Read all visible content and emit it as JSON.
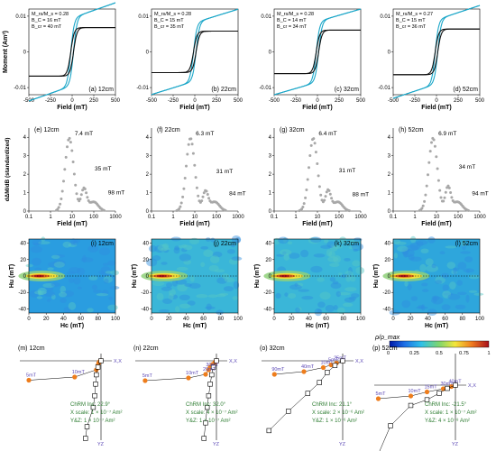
{
  "colors": {
    "cyan": "#1aa6c8",
    "black": "#111111",
    "gray": "#a8a8a8",
    "orange": "#ee7d1c",
    "purple": "#5a47b5",
    "green": "#2e7d32"
  },
  "chart_data": [
    {
      "type": "line",
      "panel": "a",
      "label": "(a) 12cm",
      "ratio": "M_rs/M_s = 0.28",
      "bc": "B_C   = 16 mT",
      "bcr": "B_cr  = 40 mT",
      "xlabel": "Field (mT)",
      "ylabel": "Moment (Am²)",
      "xlim": [
        -500,
        500
      ],
      "ylim": [
        -0.012,
        0.012
      ],
      "xticks": [
        "-500",
        "-250",
        "0",
        "250",
        "500"
      ],
      "yticks": [
        "0.01",
        "0",
        "-0.01"
      ],
      "series": [
        {
          "name": "cyan",
          "color": "#1aa6c8",
          "ms": 0.0095,
          "slope": 8.5e-06,
          "bc": 16
        },
        {
          "name": "black",
          "color": "#111111",
          "ms": 0.0068,
          "slope": 0,
          "bc": 16
        }
      ]
    },
    {
      "type": "line",
      "panel": "b",
      "label": "(b) 22cm",
      "ratio": "M_rs/M_s = 0.28",
      "bc": "B_C   = 15 mT",
      "bcr": "B_cr  = 35 mT",
      "xlabel": "Field (mT)",
      "ylabel": "",
      "xlim": [
        -500,
        500
      ],
      "ylim": [
        -0.012,
        0.012
      ],
      "xticks": [
        "-500",
        "-250",
        "0",
        "250",
        "500"
      ],
      "yticks": [
        "0.01",
        "0",
        "-0.01"
      ],
      "series": [
        {
          "name": "cyan",
          "color": "#1aa6c8",
          "ms": 0.0082,
          "slope": 7.5e-06,
          "bc": 15
        },
        {
          "name": "black",
          "color": "#111111",
          "ms": 0.0058,
          "slope": 0,
          "bc": 15
        }
      ]
    },
    {
      "type": "line",
      "panel": "c",
      "label": "(c) 32cm",
      "ratio": "M_rs/M_s = 0.28",
      "bc": "B_C   = 14 mT",
      "bcr": "B_cr  = 34 mT",
      "xlabel": "Field (mT)",
      "ylabel": "",
      "xlim": [
        -500,
        500
      ],
      "ylim": [
        -0.012,
        0.012
      ],
      "xticks": [
        "-500",
        "-250",
        "0",
        "250",
        "500"
      ],
      "yticks": [
        "0.01",
        "0",
        "-0.01"
      ],
      "series": [
        {
          "name": "cyan",
          "color": "#1aa6c8",
          "ms": 0.0085,
          "slope": 7e-06,
          "bc": 14
        },
        {
          "name": "black",
          "color": "#111111",
          "ms": 0.0061,
          "slope": 0,
          "bc": 14
        }
      ]
    },
    {
      "type": "line",
      "panel": "d",
      "label": "(d) 52cm",
      "ratio": "M_rs/M_s = 0.27",
      "bc": "B_C   = 15 mT",
      "bcr": "B_cr  = 36 mT",
      "xlabel": "Field (mT)",
      "ylabel": "",
      "xlim": [
        -500,
        500
      ],
      "ylim": [
        -0.012,
        0.012
      ],
      "xticks": [
        "-500",
        "-250",
        "0",
        "250",
        "500"
      ],
      "yticks": [
        "0.01",
        "0",
        "-0.01"
      ],
      "series": [
        {
          "name": "cyan",
          "color": "#1aa6c8",
          "ms": 0.009,
          "slope": 8e-06,
          "bc": 15
        },
        {
          "name": "black",
          "color": "#111111",
          "ms": 0.0064,
          "slope": 0,
          "bc": 15
        }
      ]
    },
    {
      "type": "scatter",
      "panel": "e",
      "label": "(e) 12cm",
      "xlabel": "Field (mT)",
      "ylabel": "dΔM/dB (standardized)",
      "xscale": "log",
      "xlim": [
        0.1,
        1000
      ],
      "ylim": [
        0,
        4.5
      ],
      "xticks": [
        "0.1",
        "1",
        "10",
        "100",
        "1000"
      ],
      "yticks": [
        "4",
        "3",
        "2",
        "1",
        "0"
      ],
      "peaks": [
        {
          "text": "7.4 mT",
          "x": 7.4,
          "y": 3.95
        },
        {
          "text": "35 mT",
          "x": 35,
          "y": 2.1
        },
        {
          "text": "98 mT",
          "x": 98,
          "y": 0.9
        }
      ]
    },
    {
      "type": "scatter",
      "panel": "f",
      "label": "(f) 22cm",
      "xlabel": "Field (mT)",
      "ylabel": "",
      "xscale": "log",
      "xlim": [
        0.1,
        1000
      ],
      "ylim": [
        0,
        4.5
      ],
      "xticks": [
        "0.1",
        "1",
        "10",
        "100",
        "1000"
      ],
      "yticks": [
        "4",
        "3",
        "2",
        "1",
        "0"
      ],
      "peaks": [
        {
          "text": "6.3 mT",
          "x": 6.3,
          "y": 3.95
        },
        {
          "text": "31 mT",
          "x": 31,
          "y": 1.95
        },
        {
          "text": "84 mT",
          "x": 84,
          "y": 0.85
        }
      ]
    },
    {
      "type": "scatter",
      "panel": "g",
      "label": "(g) 32cm",
      "xlabel": "Field (mT)",
      "ylabel": "",
      "xscale": "log",
      "xlim": [
        0.1,
        1000
      ],
      "ylim": [
        0,
        4.5
      ],
      "xticks": [
        "0.1",
        "1",
        "10",
        "100",
        "1000"
      ],
      "yticks": [
        "4",
        "3",
        "2",
        "1",
        "0"
      ],
      "peaks": [
        {
          "text": "6.4 mT",
          "x": 6.4,
          "y": 3.95
        },
        {
          "text": "31 mT",
          "x": 31,
          "y": 2.0
        },
        {
          "text": "88 mT",
          "x": 88,
          "y": 0.8
        }
      ]
    },
    {
      "type": "scatter",
      "panel": "h",
      "label": "(h) 52cm",
      "xlabel": "Field (mT)",
      "ylabel": "",
      "xscale": "log",
      "xlim": [
        0.1,
        1000
      ],
      "ylim": [
        0,
        4.5
      ],
      "xticks": [
        "0.1",
        "1",
        "10",
        "100",
        "1000"
      ],
      "yticks": [
        "4",
        "3",
        "2",
        "1",
        "0"
      ],
      "peaks": [
        {
          "text": "6.9 mT",
          "x": 6.9,
          "y": 3.95
        },
        {
          "text": "34 mT",
          "x": 34,
          "y": 2.2
        },
        {
          "text": "94 mT",
          "x": 94,
          "y": 0.85
        }
      ]
    },
    {
      "type": "heatmap",
      "panel": "i",
      "label": "(i) 12cm",
      "xlabel": "Hc (mT)",
      "ylabel": "Hu (mT)",
      "xlim": [
        0,
        100
      ],
      "ylim": [
        -45,
        45
      ],
      "xticks": [
        "0",
        "20",
        "40",
        "60",
        "80",
        "100"
      ],
      "yticks": [
        "40",
        "20",
        "0",
        "-20",
        "-40"
      ],
      "background": "#2a9de0",
      "peak_hc": 15
    },
    {
      "type": "heatmap",
      "panel": "j",
      "label": "(j) 22cm",
      "xlabel": "Hc (mT)",
      "ylabel": "Hu (mT)",
      "xlim": [
        0,
        100
      ],
      "ylim": [
        -45,
        45
      ],
      "xticks": [
        "0",
        "20",
        "40",
        "60",
        "80",
        "100"
      ],
      "yticks": [
        "40",
        "20",
        "0",
        "-20",
        "-40"
      ],
      "background": "#3ab6d8",
      "peak_hc": 15
    },
    {
      "type": "heatmap",
      "panel": "k",
      "label": "(k) 32cm",
      "xlabel": "Hc (mT)",
      "ylabel": "Hu (mT)",
      "xlim": [
        0,
        100
      ],
      "ylim": [
        -45,
        45
      ],
      "xticks": [
        "0",
        "20",
        "40",
        "60",
        "80",
        "100"
      ],
      "yticks": [
        "40",
        "20",
        "0",
        "-20",
        "-40"
      ],
      "background": "#3ab6d8",
      "peak_hc": 15
    },
    {
      "type": "heatmap",
      "panel": "l",
      "label": "(l) 52cm",
      "xlabel": "Hc (mT)",
      "ylabel": "Hu (mT)",
      "xlim": [
        0,
        100
      ],
      "ylim": [
        -45,
        45
      ],
      "xticks": [
        "0",
        "20",
        "40",
        "60",
        "80",
        "100"
      ],
      "yticks": [
        "40",
        "20",
        "0",
        "-20",
        "-40"
      ],
      "background": "#2ea6dc",
      "peak_hc": 15
    },
    {
      "type": "scatter",
      "panel": "m",
      "label": "(m) 12cm",
      "axis_x": "X,X",
      "axis_y": "YZ",
      "note1": "ChRM Inc: 22.9°",
      "note2": "X scale: 1 × 10⁻⁷ Am²",
      "note3": "Y&Z: 1 × 10⁻⁷ Am²",
      "orange": [
        [
          -0.93,
          0.43
        ],
        [
          -0.34,
          0.36
        ],
        [
          -0.06,
          0.2
        ],
        [
          -0.04,
          0.1
        ],
        [
          -0.03,
          0.05
        ],
        [
          -0.02,
          0.02
        ],
        [
          0,
          0
        ]
      ],
      "squares": [
        [
          -0.2,
          1.0
        ],
        [
          -0.18,
          0.85
        ],
        [
          -0.1,
          0.6
        ],
        [
          -0.08,
          0.45
        ],
        [
          -0.07,
          0.3
        ],
        [
          -0.06,
          0.18
        ],
        [
          -0.04,
          0.08
        ],
        [
          0,
          0
        ]
      ],
      "steps": [
        "5mT",
        "10mT"
      ]
    },
    {
      "type": "scatter",
      "panel": "n",
      "label": "(n) 22cm",
      "axis_x": "X,X",
      "axis_y": "YZ",
      "note1": "ChRM Inc: 32.0°",
      "note2": "X scale: 4 × 10⁻⁷ Am²",
      "note3": "Y&Z: 1 × 10⁻⁷ Am²",
      "orange": [
        [
          -0.92,
          0.44
        ],
        [
          -0.36,
          0.38
        ],
        [
          -0.14,
          0.3
        ],
        [
          -0.1,
          0.2
        ],
        [
          -0.08,
          0.14
        ],
        [
          -0.05,
          0.08
        ],
        [
          -0.02,
          0.03
        ],
        [
          0,
          0
        ]
      ],
      "squares": [
        [
          -0.16,
          1.0
        ],
        [
          -0.14,
          0.8
        ],
        [
          -0.12,
          0.6
        ],
        [
          -0.1,
          0.45
        ],
        [
          -0.08,
          0.3
        ],
        [
          -0.06,
          0.18
        ],
        [
          -0.04,
          0.08
        ],
        [
          0,
          0
        ]
      ],
      "steps": [
        "5mT",
        "10mT",
        "20mT",
        "30mT"
      ]
    },
    {
      "type": "scatter",
      "panel": "o",
      "label": "(o) 32cm",
      "axis_x": "X,X",
      "axis_y": "YZ",
      "note1": "ChRM Inc: 21.1°",
      "note2": "X scale: 2 × 10⁻⁶ Am²",
      "note3": "Y&Z: 1 × 10⁻⁶ Am²",
      "orange": [
        [
          -0.88,
          0.3
        ],
        [
          -0.5,
          0.24
        ],
        [
          -0.25,
          0.15
        ],
        [
          -0.15,
          0.09
        ],
        [
          -0.08,
          0.05
        ],
        [
          0,
          0
        ]
      ],
      "squares": [
        [
          -0.95,
          0.9
        ],
        [
          -0.7,
          0.65
        ],
        [
          -0.45,
          0.42
        ],
        [
          -0.3,
          0.28
        ],
        [
          -0.2,
          0.15
        ],
        [
          -0.1,
          0.06
        ],
        [
          0,
          0
        ]
      ],
      "steps": [
        "90mT",
        "40mT",
        "10mT",
        "5mT",
        "25mT"
      ]
    },
    {
      "type": "scatter",
      "panel": "p",
      "label": "(p) 52cm",
      "axis_x": "X,X",
      "axis_y": "YZ",
      "note1": "ChRM Inc: -21.5°",
      "note2": "X scale: 1 × 10⁻⁷ Am²",
      "note3": "Y&Z: 4 × 10⁻⁸ Am²",
      "orange": [
        [
          -0.95,
          0.3
        ],
        [
          -0.55,
          0.24
        ],
        [
          -0.35,
          0.15
        ],
        [
          -0.15,
          0.08
        ],
        [
          -0.05,
          0.03
        ],
        [
          0,
          0
        ]
      ],
      "squares": [
        [
          -0.95,
          0.85
        ],
        [
          -0.8,
          0.5
        ],
        [
          -0.55,
          0.25
        ],
        [
          -0.35,
          0.18
        ],
        [
          -0.2,
          0.1
        ],
        [
          -0.1,
          0.04
        ],
        [
          0,
          0
        ]
      ],
      "steps": [
        "5mT",
        "10mT",
        "15mT",
        "30mT",
        "40mT"
      ]
    }
  ],
  "colorbar": {
    "label": "ρ/ρ_max",
    "ticks": [
      "0.25",
      "0.5",
      "0.75",
      "1"
    ],
    "zero": "0"
  }
}
